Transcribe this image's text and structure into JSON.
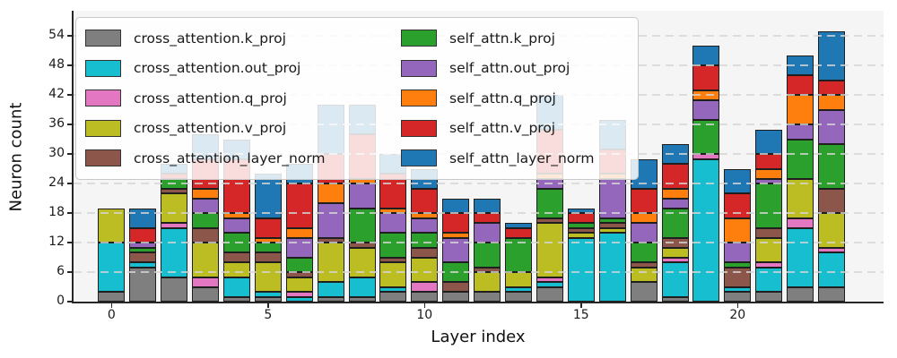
{
  "figure": {
    "background": "#ffffff",
    "plot_background": "#f5f5f6",
    "grid_color": "#d6d6d6",
    "spine_color": "#262626",
    "bar_edge_color": "#1f1f1f",
    "legend_border_color": "#c9c9c9"
  },
  "chart_data": {
    "type": "bar",
    "stacked": true,
    "title": "",
    "xlabel": "Layer index",
    "ylabel": "Neuron count",
    "categories": [
      0,
      1,
      2,
      3,
      4,
      5,
      6,
      7,
      8,
      9,
      10,
      11,
      12,
      13,
      14,
      15,
      16,
      17,
      18,
      19,
      20,
      21,
      22,
      23
    ],
    "xticks": [
      0,
      5,
      10,
      15,
      20
    ],
    "yticks": [
      0,
      6,
      12,
      18,
      24,
      30,
      36,
      42,
      48,
      54
    ],
    "ylim": [
      0,
      59
    ],
    "grid": "horizontal dashed, drawn above bars",
    "legend_position": "upper left, 2 columns",
    "series": [
      {
        "name": "cross_attention.k_proj",
        "color": "#7f7f7f",
        "values": [
          2,
          7,
          5,
          3,
          1,
          1,
          0,
          1,
          1,
          2,
          2,
          2,
          2,
          2,
          3,
          0,
          0,
          4,
          1,
          0,
          2,
          2,
          3,
          3
        ]
      },
      {
        "name": "cross_attention.out_proj",
        "color": "#17becf",
        "values": [
          10,
          1,
          10,
          0,
          4,
          1,
          1,
          3,
          4,
          1,
          0,
          0,
          0,
          1,
          1,
          13,
          14,
          0,
          7,
          29,
          1,
          5,
          12,
          7
        ]
      },
      {
        "name": "cross_attention.q_proj",
        "color": "#e377c2",
        "values": [
          0,
          0,
          1,
          2,
          0,
          0,
          1,
          0,
          0,
          0,
          2,
          0,
          0,
          0,
          1,
          0,
          0,
          0,
          1,
          1,
          0,
          1,
          2,
          1
        ]
      },
      {
        "name": "cross_attention.v_proj",
        "color": "#bcbd22",
        "values": [
          7,
          0,
          6,
          7,
          3,
          6,
          3,
          8,
          6,
          5,
          5,
          0,
          4,
          3,
          11,
          1,
          1,
          3,
          2,
          0,
          0,
          5,
          8,
          7
        ]
      },
      {
        "name": "cross_attention_layer_norm",
        "color": "#8c564b",
        "values": [
          0,
          2,
          1,
          3,
          2,
          2,
          1,
          1,
          1,
          1,
          2,
          2,
          1,
          0,
          1,
          1,
          1,
          1,
          2,
          0,
          4,
          2,
          0,
          5
        ]
      },
      {
        "name": "self_attn.k_proj",
        "color": "#2ca02c",
        "values": [
          0,
          1,
          2,
          3,
          4,
          2,
          3,
          0,
          7,
          5,
          3,
          4,
          5,
          7,
          6,
          1,
          1,
          4,
          6,
          7,
          1,
          9,
          8,
          9
        ]
      },
      {
        "name": "self_attn.out_proj",
        "color": "#9467bd",
        "values": [
          0,
          1,
          0,
          3,
          3,
          0,
          4,
          7,
          5,
          4,
          3,
          5,
          4,
          0,
          2,
          0,
          8,
          4,
          2,
          4,
          4,
          1,
          3,
          7
        ]
      },
      {
        "name": "self_attn.q_proj",
        "color": "#ff7f0e",
        "values": [
          0,
          0,
          0,
          2,
          1,
          1,
          2,
          4,
          1,
          1,
          1,
          1,
          0,
          0,
          1,
          0,
          1,
          2,
          2,
          2,
          5,
          2,
          6,
          3
        ]
      },
      {
        "name": "self_attn.v_proj",
        "color": "#d62728",
        "values": [
          0,
          3,
          1,
          6,
          11,
          4,
          9,
          6,
          9,
          7,
          5,
          4,
          2,
          2,
          9,
          2,
          5,
          5,
          5,
          5,
          5,
          3,
          4,
          3
        ]
      },
      {
        "name": "self_attn_layer_norm",
        "color": "#1f77b4",
        "values": [
          0,
          4,
          2,
          5,
          4,
          9,
          4,
          10,
          6,
          4,
          4,
          3,
          3,
          1,
          7,
          1,
          6,
          6,
          4,
          4,
          5,
          5,
          4,
          10
        ]
      }
    ]
  }
}
